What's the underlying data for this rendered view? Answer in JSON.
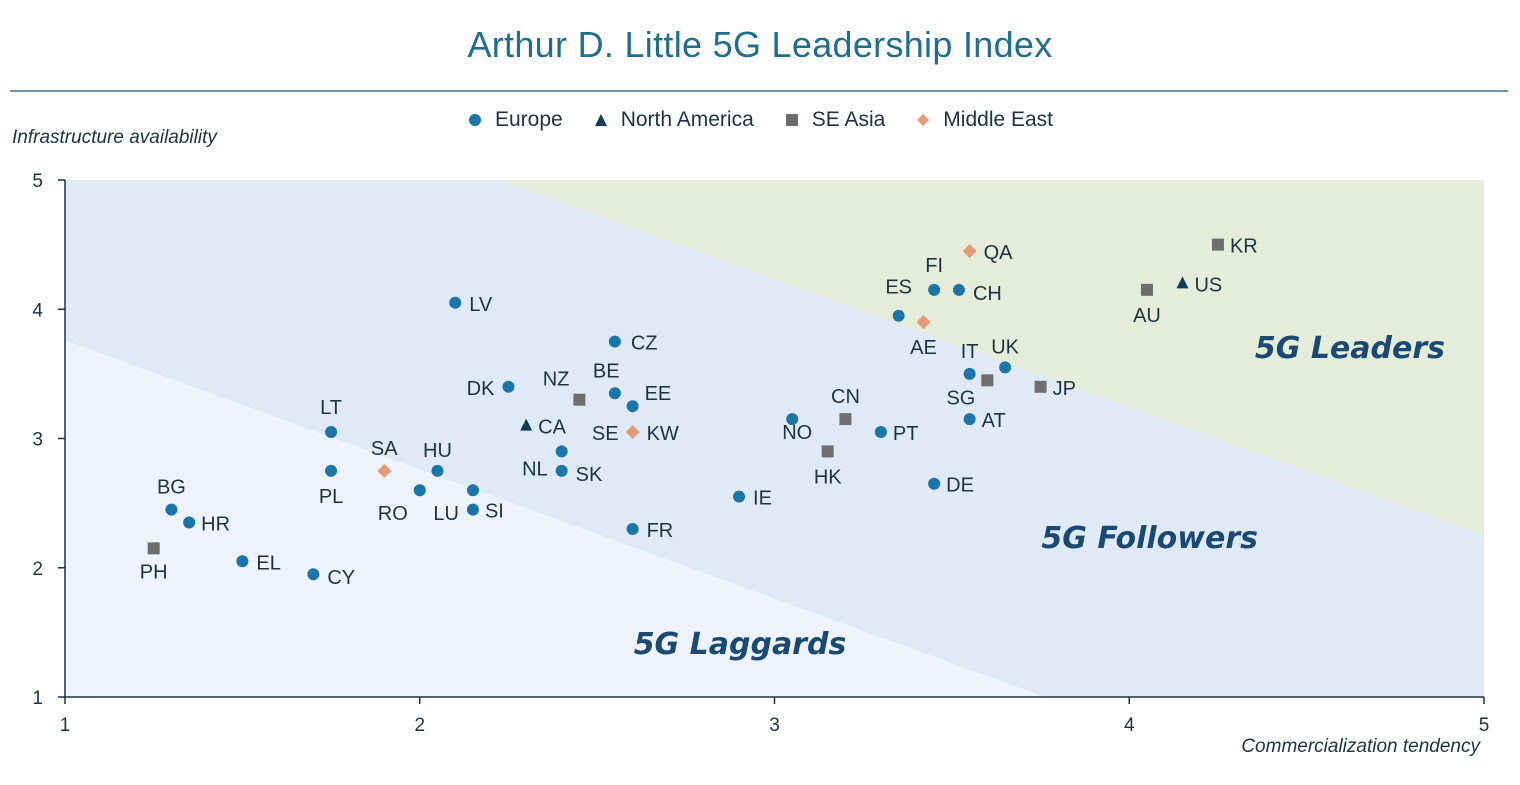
{
  "chart_data": {
    "type": "scatter",
    "title": "Arthur D. Little 5G Leadership Index",
    "xlabel": "Commercialization tendency",
    "ylabel": "Infrastructure availability",
    "xlim": [
      1,
      5
    ],
    "ylim": [
      1,
      5
    ],
    "x_ticks": [
      "1",
      "2",
      "3",
      "4",
      "5"
    ],
    "y_ticks": [
      "1",
      "2",
      "3",
      "4",
      "5"
    ],
    "grid": false,
    "legend_position": "top-center",
    "colors": {
      "Europe": "#1a75a8",
      "North America": "#123c5a",
      "SE Asia": "#6e6e6e",
      "Middle East": "#e59a78",
      "laggards_zone": "#eef3fb",
      "followers_zone": "#dfeaf6",
      "leaders_zone": "#e5ecd9"
    },
    "series": [
      {
        "name": "Europe",
        "marker": "circle",
        "points": [
          {
            "label": "LV",
            "x": 2.1,
            "y": 4.05
          },
          {
            "label": "CZ",
            "x": 2.55,
            "y": 3.75
          },
          {
            "label": "DK",
            "x": 2.25,
            "y": 3.4
          },
          {
            "label": "BE",
            "x": 2.55,
            "y": 3.35
          },
          {
            "label": "EE",
            "x": 2.6,
            "y": 3.25
          },
          {
            "label": "NL",
            "x": 2.4,
            "y": 2.9
          },
          {
            "label": "SK",
            "x": 2.4,
            "y": 2.75
          },
          {
            "label": "LT",
            "x": 1.75,
            "y": 3.05
          },
          {
            "label": "PL",
            "x": 1.75,
            "y": 2.75
          },
          {
            "label": "HU",
            "x": 2.05,
            "y": 2.75
          },
          {
            "label": "RO",
            "x": 2.0,
            "y": 2.6
          },
          {
            "label": "LU",
            "x": 2.15,
            "y": 2.6
          },
          {
            "label": "SI",
            "x": 2.15,
            "y": 2.45
          },
          {
            "label": "BG",
            "x": 1.3,
            "y": 2.45
          },
          {
            "label": "HR",
            "x": 1.35,
            "y": 2.35
          },
          {
            "label": "EL",
            "x": 1.5,
            "y": 2.05
          },
          {
            "label": "CY",
            "x": 1.7,
            "y": 1.95
          },
          {
            "label": "FR",
            "x": 2.6,
            "y": 2.3
          },
          {
            "label": "IE",
            "x": 2.9,
            "y": 2.55
          },
          {
            "label": "NO",
            "x": 3.05,
            "y": 3.15
          },
          {
            "label": "PT",
            "x": 3.3,
            "y": 3.05
          },
          {
            "label": "DE",
            "x": 3.45,
            "y": 2.65
          },
          {
            "label": "AT",
            "x": 3.55,
            "y": 3.15
          },
          {
            "label": "IT",
            "x": 3.55,
            "y": 3.5
          },
          {
            "label": "UK",
            "x": 3.65,
            "y": 3.55
          },
          {
            "label": "ES",
            "x": 3.35,
            "y": 3.95
          },
          {
            "label": "FI",
            "x": 3.45,
            "y": 4.15
          },
          {
            "label": "CH",
            "x": 3.52,
            "y": 4.15
          }
        ]
      },
      {
        "name": "North America",
        "marker": "triangle",
        "points": [
          {
            "label": "CA",
            "x": 2.3,
            "y": 3.1
          },
          {
            "label": "US",
            "x": 4.15,
            "y": 4.2
          }
        ]
      },
      {
        "name": "SE Asia",
        "marker": "square",
        "points": [
          {
            "label": "NZ",
            "x": 2.45,
            "y": 3.3
          },
          {
            "label": "PH",
            "x": 1.25,
            "y": 2.15
          },
          {
            "label": "CN",
            "x": 3.2,
            "y": 3.15
          },
          {
            "label": "HK",
            "x": 3.15,
            "y": 2.9
          },
          {
            "label": "SG",
            "x": 3.6,
            "y": 3.45
          },
          {
            "label": "JP",
            "x": 3.75,
            "y": 3.4
          },
          {
            "label": "AU",
            "x": 4.05,
            "y": 4.15
          },
          {
            "label": "KR",
            "x": 4.25,
            "y": 4.5
          }
        ]
      },
      {
        "name": "Middle East",
        "marker": "diamond",
        "points": [
          {
            "label": "SA",
            "x": 1.9,
            "y": 2.75
          },
          {
            "label": "SE KW",
            "x": 2.6,
            "y": 3.05
          },
          {
            "label": "AE",
            "x": 3.42,
            "y": 3.9
          },
          {
            "label": "QA",
            "x": 3.55,
            "y": 4.45
          }
        ]
      }
    ],
    "regions": [
      "5G Leaders",
      "5G Followers",
      "5G Laggards"
    ]
  }
}
